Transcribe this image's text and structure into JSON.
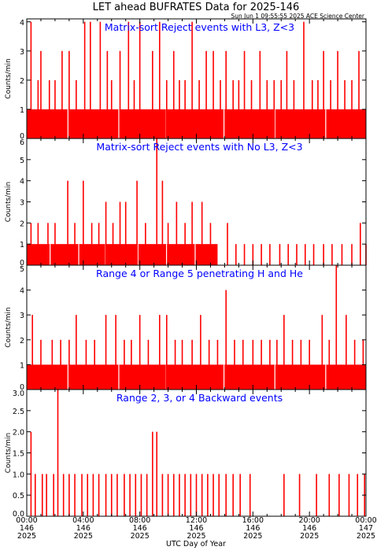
{
  "page": {
    "title": "LET ahead BUFRATES Data for 2025-146",
    "timestamp": "Sun Jun  1 09:55:55 2025 ACE Science Center",
    "xlabel": "UTC Day of Year"
  },
  "colors": {
    "trace": "#ff0000",
    "panel_title": "#0000ff",
    "axis": "#000000",
    "background": "#ffffff"
  },
  "x_ticks": [
    {
      "time": "00:00",
      "day": "146",
      "year": "2025",
      "hour": 0
    },
    {
      "time": "04:00",
      "day": "146",
      "year": "2025",
      "hour": 4
    },
    {
      "time": "08:00",
      "day": "146",
      "year": "2025",
      "hour": 8
    },
    {
      "time": "12:00",
      "day": "146",
      "year": "2025",
      "hour": 12
    },
    {
      "time": "16:00",
      "day": "146",
      "year": "2025",
      "hour": 16
    },
    {
      "time": "20:00",
      "day": "146",
      "year": "2025",
      "hour": 20
    },
    {
      "time": "00:00",
      "day": "147",
      "year": "2025",
      "hour": 24
    }
  ],
  "chart_data": [
    {
      "type": "bar",
      "title": "Matrix-sort Reject events with L3, Z<3",
      "ylabel": "Counts/min",
      "xlim": [
        0,
        24
      ],
      "ylim": [
        0,
        4.1
      ],
      "yticks": [
        "0",
        "1",
        "2",
        "3",
        "4"
      ],
      "series": [
        {
          "base": 1,
          "spikes": [
            {
              "x": 0.3,
              "v": 4
            },
            {
              "x": 1.0,
              "v": 3
            },
            {
              "x": 2.5,
              "v": 3
            },
            {
              "x": 3.0,
              "v": 3
            },
            {
              "x": 4.1,
              "v": 4
            },
            {
              "x": 4.5,
              "v": 4
            },
            {
              "x": 5.2,
              "v": 4
            },
            {
              "x": 5.7,
              "v": 3
            },
            {
              "x": 6.6,
              "v": 3
            },
            {
              "x": 7.2,
              "v": 4
            },
            {
              "x": 8.0,
              "v": 4
            },
            {
              "x": 8.9,
              "v": 3
            },
            {
              "x": 9.4,
              "v": 4
            },
            {
              "x": 10.4,
              "v": 3
            },
            {
              "x": 11.7,
              "v": 4
            },
            {
              "x": 12.7,
              "v": 3
            },
            {
              "x": 13.2,
              "v": 3
            },
            {
              "x": 14.1,
              "v": 3
            },
            {
              "x": 15.4,
              "v": 3
            },
            {
              "x": 16.5,
              "v": 3
            },
            {
              "x": 18.4,
              "v": 3
            },
            {
              "x": 19.6,
              "v": 4
            },
            {
              "x": 21.0,
              "v": 3
            },
            {
              "x": 22.0,
              "v": 3
            },
            {
              "x": 23.5,
              "v": 3
            },
            {
              "x": 0.8,
              "v": 2
            },
            {
              "x": 1.6,
              "v": 2
            },
            {
              "x": 2.0,
              "v": 2
            },
            {
              "x": 3.5,
              "v": 2
            },
            {
              "x": 6.0,
              "v": 2
            },
            {
              "x": 7.6,
              "v": 2
            },
            {
              "x": 9.9,
              "v": 2
            },
            {
              "x": 10.8,
              "v": 2
            },
            {
              "x": 11.2,
              "v": 2
            },
            {
              "x": 12.2,
              "v": 2
            },
            {
              "x": 13.7,
              "v": 2
            },
            {
              "x": 14.6,
              "v": 2
            },
            {
              "x": 15.0,
              "v": 2
            },
            {
              "x": 15.9,
              "v": 2
            },
            {
              "x": 17.0,
              "v": 2
            },
            {
              "x": 17.5,
              "v": 2
            },
            {
              "x": 18.0,
              "v": 2
            },
            {
              "x": 18.9,
              "v": 2
            },
            {
              "x": 20.2,
              "v": 2
            },
            {
              "x": 20.6,
              "v": 2
            },
            {
              "x": 21.5,
              "v": 2
            },
            {
              "x": 22.5,
              "v": 2
            },
            {
              "x": 23.0,
              "v": 2
            }
          ]
        }
      ]
    },
    {
      "type": "bar",
      "title": "Matrix-sort Reject events with No L3, Z<3",
      "ylabel": "Counts/min",
      "xlim": [
        0,
        24
      ],
      "ylim": [
        0,
        6
      ],
      "yticks": [
        "0",
        "1",
        "2",
        "3",
        "4",
        "5",
        "6"
      ],
      "series": [
        {
          "base": 1,
          "base_until": 13.5,
          "spikes": [
            {
              "x": 2.9,
              "v": 4
            },
            {
              "x": 4.0,
              "v": 4
            },
            {
              "x": 5.6,
              "v": 3
            },
            {
              "x": 6.6,
              "v": 3
            },
            {
              "x": 7.0,
              "v": 3
            },
            {
              "x": 7.8,
              "v": 4
            },
            {
              "x": 9.2,
              "v": 6
            },
            {
              "x": 9.6,
              "v": 4
            },
            {
              "x": 10.6,
              "v": 3
            },
            {
              "x": 11.7,
              "v": 3
            },
            {
              "x": 12.4,
              "v": 3
            },
            {
              "x": 0.3,
              "v": 2
            },
            {
              "x": 0.8,
              "v": 2
            },
            {
              "x": 1.5,
              "v": 2
            },
            {
              "x": 2.0,
              "v": 2
            },
            {
              "x": 3.4,
              "v": 2
            },
            {
              "x": 4.6,
              "v": 2
            },
            {
              "x": 5.1,
              "v": 2
            },
            {
              "x": 6.1,
              "v": 2
            },
            {
              "x": 8.4,
              "v": 2
            },
            {
              "x": 10.0,
              "v": 2
            },
            {
              "x": 11.2,
              "v": 2
            },
            {
              "x": 13.0,
              "v": 2
            },
            {
              "x": 14.2,
              "v": 2
            },
            {
              "x": 14.8,
              "v": 1
            },
            {
              "x": 15.4,
              "v": 1
            },
            {
              "x": 16.0,
              "v": 1
            },
            {
              "x": 16.6,
              "v": 1
            },
            {
              "x": 17.2,
              "v": 1
            },
            {
              "x": 17.9,
              "v": 1
            },
            {
              "x": 18.5,
              "v": 1
            },
            {
              "x": 19.1,
              "v": 1
            },
            {
              "x": 19.7,
              "v": 1
            },
            {
              "x": 20.3,
              "v": 1
            },
            {
              "x": 21.0,
              "v": 1
            },
            {
              "x": 21.6,
              "v": 1
            },
            {
              "x": 22.3,
              "v": 1
            },
            {
              "x": 23.0,
              "v": 1
            },
            {
              "x": 23.6,
              "v": 2
            },
            {
              "x": 24.0,
              "v": 1
            }
          ]
        }
      ]
    },
    {
      "type": "bar",
      "title": "Range 4 or Range 5 penetrating H and He",
      "ylabel": "Counts/min",
      "xlim": [
        0,
        24
      ],
      "ylim": [
        0,
        5
      ],
      "yticks": [
        "0",
        "1",
        "2",
        "3",
        "4",
        "5"
      ],
      "series": [
        {
          "base": 1,
          "spikes": [
            {
              "x": 0.4,
              "v": 3
            },
            {
              "x": 3.5,
              "v": 3
            },
            {
              "x": 5.6,
              "v": 3
            },
            {
              "x": 6.3,
              "v": 3
            },
            {
              "x": 8.0,
              "v": 3
            },
            {
              "x": 9.4,
              "v": 3
            },
            {
              "x": 9.9,
              "v": 3
            },
            {
              "x": 12.3,
              "v": 3
            },
            {
              "x": 14.1,
              "v": 4
            },
            {
              "x": 18.2,
              "v": 3
            },
            {
              "x": 20.9,
              "v": 3
            },
            {
              "x": 21.9,
              "v": 5
            },
            {
              "x": 22.6,
              "v": 3
            },
            {
              "x": 1.0,
              "v": 2
            },
            {
              "x": 1.8,
              "v": 2
            },
            {
              "x": 2.4,
              "v": 2
            },
            {
              "x": 3.0,
              "v": 2
            },
            {
              "x": 4.2,
              "v": 2
            },
            {
              "x": 4.8,
              "v": 2
            },
            {
              "x": 6.9,
              "v": 2
            },
            {
              "x": 7.4,
              "v": 2
            },
            {
              "x": 8.6,
              "v": 2
            },
            {
              "x": 10.5,
              "v": 2
            },
            {
              "x": 11.0,
              "v": 2
            },
            {
              "x": 11.7,
              "v": 2
            },
            {
              "x": 12.9,
              "v": 2
            },
            {
              "x": 13.5,
              "v": 2
            },
            {
              "x": 14.7,
              "v": 2
            },
            {
              "x": 15.3,
              "v": 2
            },
            {
              "x": 16.0,
              "v": 2
            },
            {
              "x": 16.6,
              "v": 2
            },
            {
              "x": 17.2,
              "v": 2
            },
            {
              "x": 17.7,
              "v": 2
            },
            {
              "x": 18.8,
              "v": 2
            },
            {
              "x": 19.4,
              "v": 2
            },
            {
              "x": 20.0,
              "v": 2
            },
            {
              "x": 21.4,
              "v": 2
            },
            {
              "x": 23.2,
              "v": 2
            },
            {
              "x": 23.8,
              "v": 2
            }
          ]
        }
      ]
    },
    {
      "type": "bar",
      "title": "Range 2, 3, or 4 Backward events",
      "ylabel": "Counts/min",
      "xlim": [
        0,
        24
      ],
      "ylim": [
        0,
        3.0
      ],
      "yticks": [
        "0.0",
        "0.5",
        "1.0",
        "1.5",
        "2.0",
        "2.5",
        "3.0"
      ],
      "series": [
        {
          "base": 0,
          "spikes": [
            {
              "x": 0.3,
              "v": 2
            },
            {
              "x": 0.6,
              "v": 1
            },
            {
              "x": 1.1,
              "v": 1
            },
            {
              "x": 1.4,
              "v": 1
            },
            {
              "x": 1.9,
              "v": 1
            },
            {
              "x": 2.2,
              "v": 3
            },
            {
              "x": 2.6,
              "v": 1
            },
            {
              "x": 3.0,
              "v": 1
            },
            {
              "x": 3.4,
              "v": 1
            },
            {
              "x": 3.9,
              "v": 1
            },
            {
              "x": 4.3,
              "v": 1
            },
            {
              "x": 4.7,
              "v": 1
            },
            {
              "x": 5.1,
              "v": 1
            },
            {
              "x": 5.6,
              "v": 1
            },
            {
              "x": 6.0,
              "v": 1
            },
            {
              "x": 6.4,
              "v": 1
            },
            {
              "x": 6.9,
              "v": 1
            },
            {
              "x": 7.3,
              "v": 1
            },
            {
              "x": 7.7,
              "v": 1
            },
            {
              "x": 8.1,
              "v": 1
            },
            {
              "x": 8.5,
              "v": 1
            },
            {
              "x": 8.9,
              "v": 2
            },
            {
              "x": 9.2,
              "v": 2
            },
            {
              "x": 9.6,
              "v": 1
            },
            {
              "x": 10.0,
              "v": 1
            },
            {
              "x": 10.4,
              "v": 1
            },
            {
              "x": 10.8,
              "v": 1
            },
            {
              "x": 11.2,
              "v": 1
            },
            {
              "x": 11.6,
              "v": 1
            },
            {
              "x": 12.0,
              "v": 1
            },
            {
              "x": 12.4,
              "v": 1
            },
            {
              "x": 12.8,
              "v": 1
            },
            {
              "x": 13.2,
              "v": 1
            },
            {
              "x": 13.6,
              "v": 1
            },
            {
              "x": 14.1,
              "v": 1
            },
            {
              "x": 14.6,
              "v": 1
            },
            {
              "x": 15.1,
              "v": 1
            },
            {
              "x": 15.8,
              "v": 1
            },
            {
              "x": 18.2,
              "v": 1
            },
            {
              "x": 19.3,
              "v": 1
            },
            {
              "x": 20.5,
              "v": 1
            },
            {
              "x": 21.4,
              "v": 1
            },
            {
              "x": 22.1,
              "v": 1
            },
            {
              "x": 22.8,
              "v": 1
            },
            {
              "x": 23.4,
              "v": 1
            },
            {
              "x": 23.9,
              "v": 1
            }
          ]
        }
      ]
    }
  ]
}
